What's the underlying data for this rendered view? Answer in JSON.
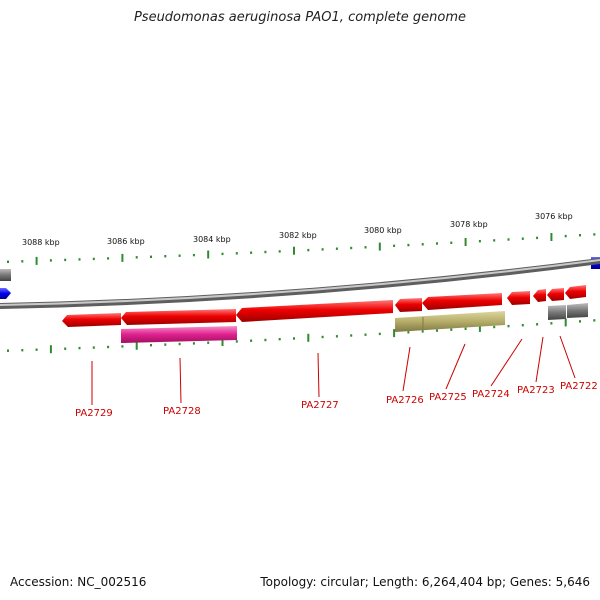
{
  "header": {
    "title": "Pseudomonas aeruginosa PAO1, complete genome"
  },
  "footer": {
    "accession": "Accession: NC_002516",
    "summary": "Topology: circular; Length: 6,264,404 bp; Genes: 5,646"
  },
  "colors": {
    "backbone": "#8a8a8a",
    "cds": "#ee0000",
    "feature_magenta": "#e0208f",
    "feature_olive": "#b5ad68",
    "feature_gray": "#777777",
    "feature_blue": "#0000ee",
    "ticks": "#2e8b2e",
    "labels": "#cc0000"
  },
  "coordinate_labels": [
    {
      "text": "3088 kbp"
    },
    {
      "text": "3086 kbp"
    },
    {
      "text": "3084 kbp"
    },
    {
      "text": "3082 kbp"
    },
    {
      "text": "3080 kbp"
    },
    {
      "text": "3078 kbp"
    },
    {
      "text": "3076 kbp"
    }
  ],
  "genes": [
    {
      "name": "PA2729"
    },
    {
      "name": "PA2728"
    },
    {
      "name": "PA2727"
    },
    {
      "name": "PA2726"
    },
    {
      "name": "PA2725"
    },
    {
      "name": "PA2724"
    },
    {
      "name": "PA2723"
    },
    {
      "name": "PA2722"
    }
  ]
}
